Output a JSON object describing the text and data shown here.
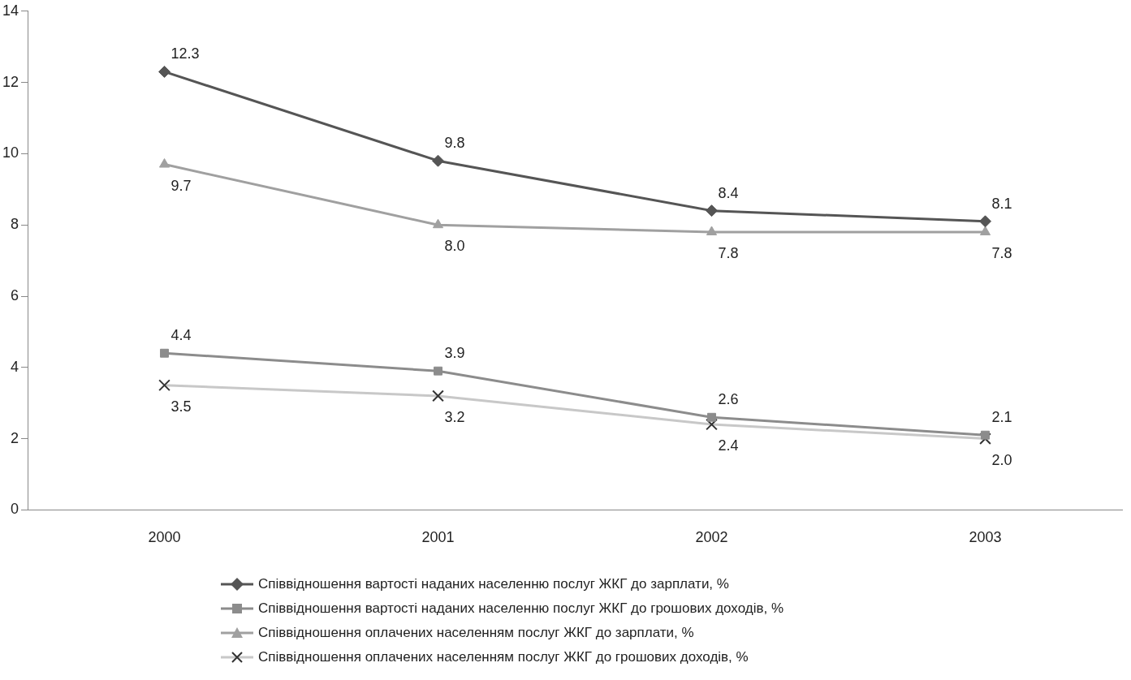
{
  "chart_data": {
    "type": "line",
    "categories": [
      "2000",
      "2001",
      "2002",
      "2003"
    ],
    "series": [
      {
        "name": "Співвідношення вартості наданих населенню послуг ЖКГ до зарплати, %",
        "color": "#555555",
        "marker": "diamond",
        "values": [
          12.3,
          9.8,
          8.4,
          8.1
        ],
        "value_labels": [
          "12.3",
          "9.8",
          "8.4",
          "8.1"
        ]
      },
      {
        "name": "Співвідношення вартості наданих населенню послуг ЖКГ до грошових доходів, %",
        "color": "#8c8c8c",
        "marker": "square",
        "values": [
          4.4,
          3.9,
          2.6,
          2.1
        ],
        "value_labels": [
          "4.4",
          "3.9",
          "2.6",
          "2.1"
        ]
      },
      {
        "name": "Співвідношення оплачених населенням послуг ЖКГ до зарплати, %",
        "color": "#a0a0a0",
        "marker": "triangle",
        "values": [
          9.7,
          8.0,
          7.8,
          7.8
        ],
        "value_labels": [
          "9.7",
          "8.0",
          "7.8",
          "7.8"
        ]
      },
      {
        "name": "Співвідношення оплачених населенням послуг ЖКГ до грошових доходів, %",
        "color": "#c8c8c8",
        "marker": "cross",
        "values": [
          3.5,
          3.2,
          2.4,
          2.0
        ],
        "value_labels": [
          "3.5",
          "3.2",
          "2.4",
          "2.0"
        ]
      }
    ],
    "ylim": [
      0,
      14
    ],
    "yticks": [
      0,
      2,
      4,
      6,
      8,
      10,
      12,
      14
    ],
    "grid": false,
    "legend": "bottom",
    "line_style": "solid"
  }
}
